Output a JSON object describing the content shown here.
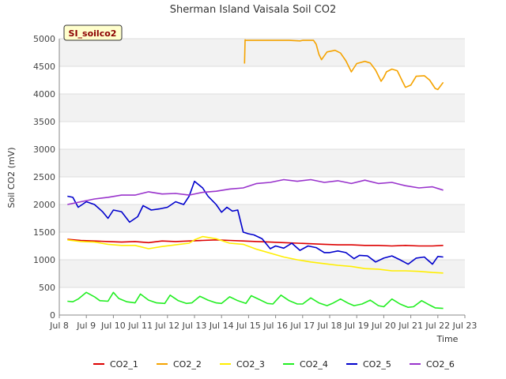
{
  "chart_data": {
    "type": "line",
    "title": "Sherman Island Vaisala Soil CO2",
    "badge": "SI_soilco2",
    "xlabel": "Time",
    "ylabel": "Soil CO2 (mV)",
    "xlim": [
      8,
      23
    ],
    "ylim": [
      0,
      5000
    ],
    "x_ticks": [
      8,
      9,
      10,
      11,
      12,
      13,
      14,
      15,
      16,
      17,
      18,
      19,
      20,
      21,
      22,
      23
    ],
    "x_tick_labels": [
      "Jul 8",
      "Jul 9",
      "Jul 10",
      "Jul 11",
      "Jul 12",
      "Jul 13",
      "Jul 14",
      "Jul 15",
      "Jul 16",
      "Jul 17",
      "Jul 18",
      "Jul 19",
      "Jul 20",
      "Jul 21",
      "Jul 22",
      "Jul 23"
    ],
    "y_ticks": [
      0,
      500,
      1000,
      1500,
      2000,
      2500,
      3000,
      3500,
      4000,
      4500,
      5000
    ],
    "y_tick_labels": [
      "0",
      "500",
      "1000",
      "1500",
      "2000",
      "2500",
      "3000",
      "3500",
      "4000",
      "4500",
      "5000"
    ],
    "grid": true,
    "legend_position": "bottom",
    "series": [
      {
        "name": "CO2_1",
        "color": "#dd0000",
        "x": [
          8.3,
          8.8,
          9.3,
          9.8,
          10.3,
          10.8,
          11.3,
          11.8,
          12.3,
          12.8,
          13.3,
          13.8,
          14.3,
          14.8,
          15.3,
          15.8,
          16.3,
          16.8,
          17.3,
          17.8,
          18.3,
          18.8,
          19.3,
          19.8,
          20.3,
          20.8,
          21.3,
          21.8,
          22.2
        ],
        "y": [
          1370,
          1350,
          1340,
          1330,
          1320,
          1330,
          1310,
          1340,
          1330,
          1340,
          1350,
          1360,
          1350,
          1340,
          1330,
          1320,
          1310,
          1300,
          1290,
          1280,
          1270,
          1270,
          1260,
          1260,
          1250,
          1260,
          1250,
          1250,
          1260
        ]
      },
      {
        "name": "CO2_2",
        "color": "#f5a300",
        "x": [
          14.85,
          14.87,
          14.9,
          15.5,
          16.0,
          16.5,
          16.9,
          17.0,
          17.2,
          17.4,
          17.5,
          17.6,
          17.7,
          17.9,
          18.2,
          18.4,
          18.6,
          18.8,
          19.0,
          19.3,
          19.5,
          19.7,
          19.9,
          20.0,
          20.1,
          20.3,
          20.5,
          20.7,
          20.8,
          21.0,
          21.2,
          21.5,
          21.7,
          21.9,
          22.0,
          22.2
        ],
        "y": [
          4550,
          4980,
          4970,
          4970,
          4970,
          4970,
          4960,
          4970,
          4970,
          4970,
          4900,
          4720,
          4620,
          4760,
          4790,
          4740,
          4600,
          4400,
          4550,
          4590,
          4560,
          4430,
          4230,
          4300,
          4400,
          4450,
          4420,
          4220,
          4120,
          4160,
          4320,
          4330,
          4250,
          4100,
          4080,
          4210
        ]
      },
      {
        "name": "CO2_3",
        "color": "#ffee00",
        "x": [
          8.3,
          8.8,
          9.3,
          9.8,
          10.3,
          10.8,
          11.3,
          11.8,
          12.3,
          12.8,
          13.0,
          13.3,
          13.8,
          14.3,
          14.8,
          15.3,
          15.8,
          16.3,
          16.8,
          17.3,
          17.8,
          18.3,
          18.8,
          19.3,
          19.8,
          20.3,
          20.8,
          21.3,
          21.8,
          22.2
        ],
        "y": [
          1360,
          1330,
          1320,
          1280,
          1260,
          1260,
          1200,
          1240,
          1270,
          1300,
          1360,
          1420,
          1380,
          1300,
          1280,
          1190,
          1120,
          1050,
          1000,
          960,
          930,
          900,
          880,
          840,
          830,
          800,
          800,
          790,
          770,
          760
        ]
      },
      {
        "name": "CO2_4",
        "color": "#22ee22",
        "x": [
          8.3,
          8.5,
          8.7,
          9.0,
          9.3,
          9.5,
          9.8,
          10.0,
          10.2,
          10.5,
          10.8,
          11.0,
          11.3,
          11.6,
          11.9,
          12.1,
          12.4,
          12.7,
          12.9,
          13.2,
          13.5,
          13.8,
          14.0,
          14.3,
          14.6,
          14.9,
          15.1,
          15.4,
          15.7,
          15.9,
          16.2,
          16.5,
          16.8,
          17.0,
          17.3,
          17.6,
          17.9,
          18.1,
          18.4,
          18.7,
          18.9,
          19.2,
          19.5,
          19.8,
          20.0,
          20.3,
          20.6,
          20.9,
          21.1,
          21.4,
          21.7,
          21.9,
          22.2
        ],
        "y": [
          250,
          240,
          290,
          410,
          330,
          260,
          250,
          410,
          300,
          240,
          220,
          380,
          270,
          220,
          210,
          360,
          260,
          210,
          220,
          340,
          270,
          220,
          210,
          330,
          260,
          210,
          350,
          280,
          210,
          200,
          360,
          260,
          200,
          200,
          310,
          220,
          170,
          210,
          290,
          210,
          170,
          200,
          270,
          170,
          150,
          290,
          200,
          140,
          150,
          260,
          180,
          130,
          120
        ]
      },
      {
        "name": "CO2_5",
        "color": "#0000cc",
        "x": [
          8.3,
          8.5,
          8.7,
          9.0,
          9.3,
          9.6,
          9.8,
          10.0,
          10.3,
          10.6,
          10.9,
          11.1,
          11.4,
          11.7,
          12.0,
          12.3,
          12.6,
          12.8,
          13.0,
          13.3,
          13.5,
          13.8,
          14.0,
          14.2,
          14.4,
          14.6,
          14.8,
          15.0,
          15.2,
          15.5,
          15.8,
          16.0,
          16.3,
          16.6,
          16.9,
          17.2,
          17.5,
          17.8,
          18.0,
          18.3,
          18.6,
          18.9,
          19.1,
          19.4,
          19.7,
          20.0,
          20.3,
          20.6,
          20.9,
          21.2,
          21.5,
          21.8,
          22.0,
          22.2
        ],
        "y": [
          2150,
          2130,
          1950,
          2050,
          2000,
          1870,
          1750,
          1900,
          1870,
          1680,
          1780,
          1980,
          1900,
          1920,
          1950,
          2050,
          2000,
          2150,
          2420,
          2300,
          2150,
          2000,
          1860,
          1950,
          1880,
          1900,
          1500,
          1470,
          1450,
          1380,
          1200,
          1250,
          1210,
          1300,
          1170,
          1250,
          1220,
          1130,
          1130,
          1160,
          1130,
          1020,
          1080,
          1070,
          960,
          1030,
          1070,
          1000,
          920,
          1030,
          1050,
          920,
          1060,
          1050
        ]
      },
      {
        "name": "CO2_6",
        "color": "#9933cc",
        "x": [
          8.3,
          8.8,
          9.3,
          9.8,
          10.3,
          10.8,
          11.3,
          11.8,
          12.3,
          12.8,
          13.3,
          13.8,
          14.3,
          14.8,
          15.3,
          15.8,
          16.3,
          16.8,
          17.3,
          17.8,
          18.3,
          18.8,
          19.3,
          19.8,
          20.3,
          20.8,
          21.3,
          21.8,
          22.2
        ],
        "y": [
          2000,
          2050,
          2100,
          2130,
          2170,
          2170,
          2230,
          2190,
          2200,
          2170,
          2220,
          2240,
          2280,
          2300,
          2380,
          2400,
          2450,
          2420,
          2450,
          2400,
          2430,
          2380,
          2440,
          2380,
          2400,
          2340,
          2300,
          2320,
          2260
        ]
      }
    ]
  }
}
